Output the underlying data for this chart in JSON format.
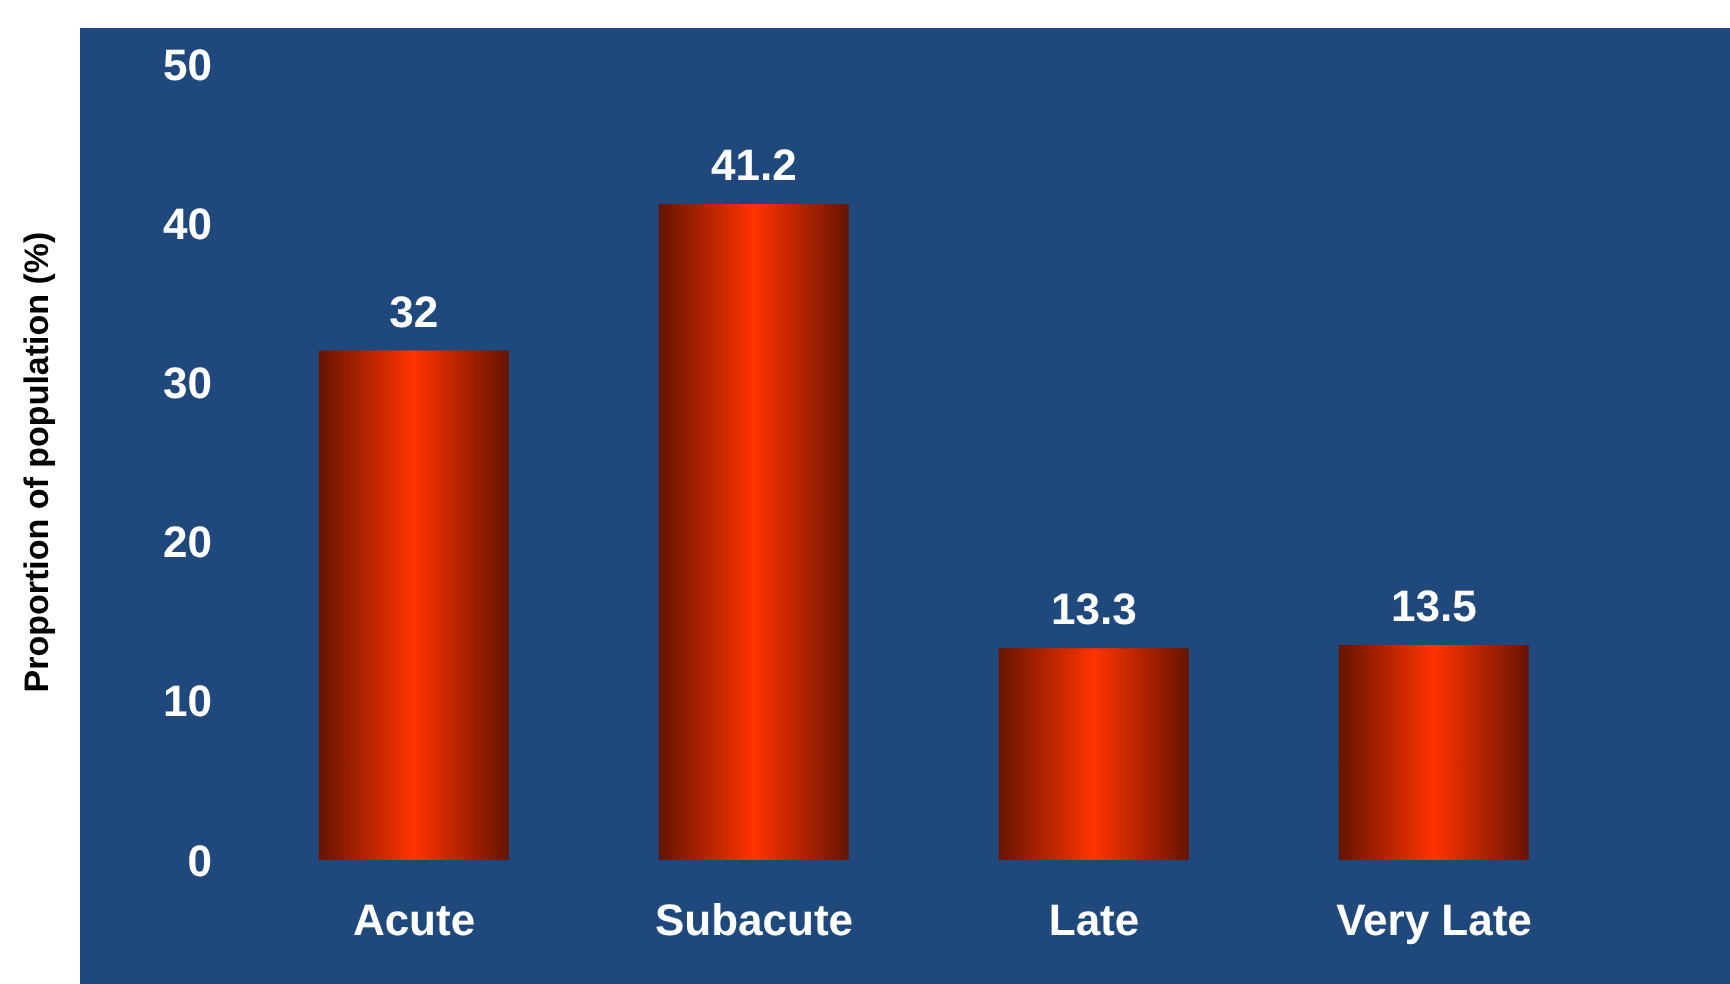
{
  "chart_data": {
    "type": "bar",
    "ylabel": "Proportion of population (%)",
    "categories": [
      "Acute",
      "Subacute",
      "Late",
      "Very Late"
    ],
    "values": [
      32,
      41.2,
      13.3,
      13.5
    ],
    "color": "#ff3300",
    "ylim": [
      0,
      50
    ],
    "yticks": [
      0,
      10,
      20,
      30,
      40,
      50
    ],
    "grid": false,
    "data_labels": true
  }
}
